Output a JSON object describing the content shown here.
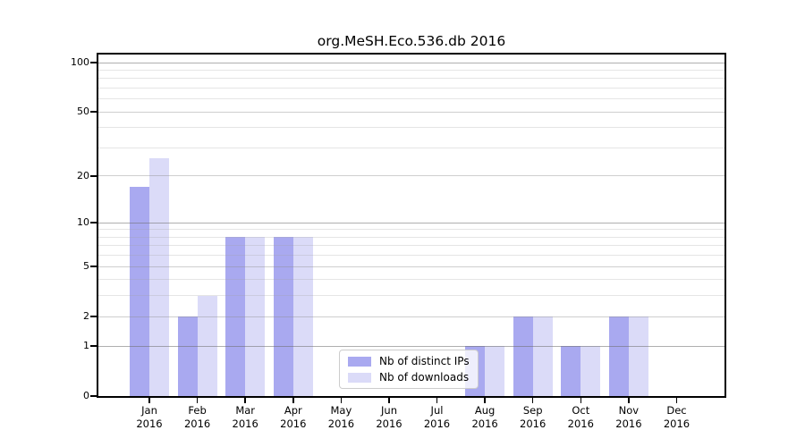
{
  "chart_data": {
    "type": "bar",
    "title": "org.MeSH.Eco.536.db 2016",
    "year": "2016",
    "x_months": [
      "Jan",
      "Feb",
      "Mar",
      "Apr",
      "May",
      "Jun",
      "Jul",
      "Aug",
      "Sep",
      "Oct",
      "Nov",
      "Dec"
    ],
    "series": [
      {
        "name": "Nb of distinct IPs",
        "color": "#a9a9f0",
        "values": [
          17,
          2,
          8,
          8,
          0,
          0,
          0,
          1,
          2,
          1,
          2,
          0
        ]
      },
      {
        "name": "Nb of downloads",
        "color": "#dbdbf8",
        "values": [
          26,
          3,
          8,
          8,
          0,
          0,
          0,
          1,
          2,
          1,
          2,
          0
        ]
      }
    ],
    "y_scale": "log1p",
    "ylim": [
      0,
      100
    ],
    "y_tick_values": [
      0,
      1,
      2,
      5,
      10,
      20,
      50,
      100
    ],
    "y_grid_major": [
      1,
      10,
      100
    ],
    "y_grid_mid": [
      2,
      5,
      20,
      50
    ],
    "y_grid_minor": [
      3,
      4,
      6,
      7,
      8,
      9,
      30,
      40,
      60,
      70,
      80,
      90
    ],
    "grid": "on",
    "legend_position": "lower center"
  }
}
